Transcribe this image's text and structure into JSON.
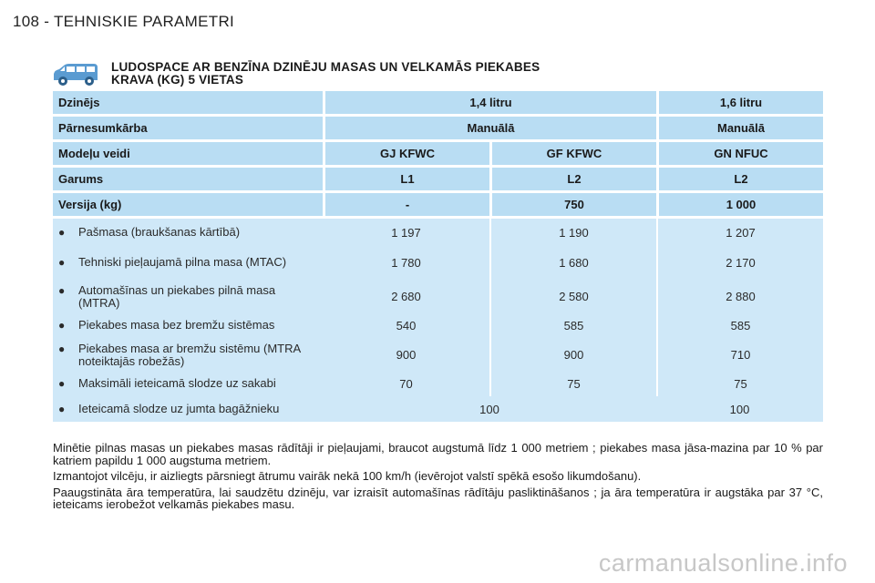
{
  "page_header": "108 - TEHNISKIE PARAMETRI",
  "title_line1": "LUDOSPACE AR BENZĪNA DZINĒJU MASAS UN VELKAMĀS PIEKABES",
  "title_line2": "KRAVA (KG) 5 VIETAS",
  "icon": "car-van-icon",
  "colors": {
    "header_row": "#b9ddf3",
    "body_bg": "#cfe8f8"
  },
  "header_rows": [
    {
      "label": "Dzinējs",
      "cells": [
        "1,4 litru",
        "1,6 litru"
      ],
      "span": [
        2,
        1
      ]
    },
    {
      "label": "Pārnesumkārba",
      "cells": [
        "Manuālā",
        "Manuālā"
      ],
      "span": [
        2,
        1
      ]
    },
    {
      "label": "Modeļu veidi",
      "cells": [
        "GJ KFWC",
        "GF KFWC",
        "GN NFUC"
      ]
    },
    {
      "label": "Garums",
      "cells": [
        "L1",
        "L2",
        "L2"
      ]
    },
    {
      "label": "Versija (kg)",
      "cells": [
        "-",
        "750",
        "1 000"
      ]
    }
  ],
  "data_rows": [
    {
      "label": "Pašmasa (braukšanas kārtībā)",
      "values": [
        "1 197",
        "1 190",
        "1 207"
      ]
    },
    {
      "label": "Tehniski pieļaujamā pilna masa (MTAC)",
      "values": [
        "1 780",
        "1 680",
        "2 170"
      ]
    },
    {
      "label": "Automašīnas un piekabes pilnā masa (MTRA)",
      "values": [
        "2 680",
        "2 580",
        "2 880"
      ]
    },
    {
      "label": "Piekabes masa bez bremžu sistēmas",
      "values": [
        "540",
        "585",
        "585"
      ]
    },
    {
      "label": "Piekabes masa ar bremžu sistēmu (MTRA noteiktajās robežās)",
      "values": [
        "900",
        "900",
        "710"
      ]
    },
    {
      "label": "Maksimāli ieteicamā slodze uz sakabi",
      "values": [
        "70",
        "75",
        "75"
      ]
    },
    {
      "label": "Ieteicamā slodze uz jumta bagāžnieku",
      "values": [
        "100",
        "100"
      ]
    }
  ],
  "notes": [
    "Minētie pilnas masas un piekabes masas rādītāji ir pieļaujami, braucot augstumā līdz 1 000 metriem ; piekabes masa jāsa-mazina par 10 % par katriem papildu 1 000 augstuma metriem.",
    "Izmantojot vilcēju, ir aizliegts pārsniegt ātrumu vairāk nekā 100 km/h (ievērojot valstī spēkā esošo likumdošanu).",
    "Paaugstināta āra temperatūra, lai saudzētu dzinēju, var izraisīt automašīnas rādītāju pasliktināšanos ; ja āra temperatūra ir augstāka par 37 °C, ieteicams ierobežot velkamās piekabes masu."
  ],
  "watermark": "carmanualsonline.info"
}
